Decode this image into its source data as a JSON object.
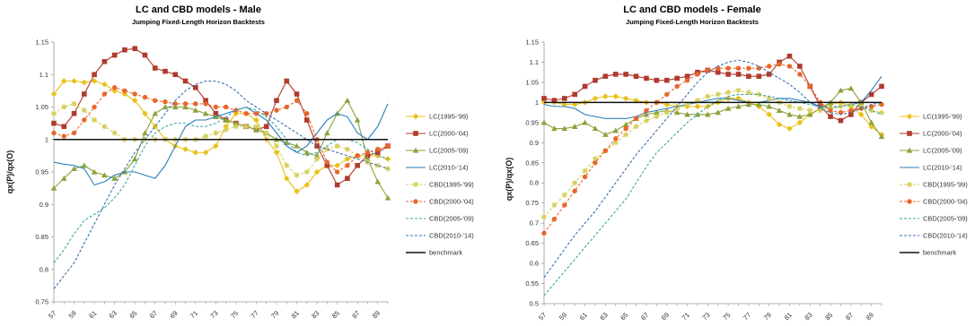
{
  "chart_data": [
    {
      "type": "line",
      "title": "LC and CBD models - Male",
      "subtitle": "Jumping Fixed-Length Horizon Backtests",
      "ylabel": "qx(P)/qx(O)",
      "xlabel": "",
      "ylim": [
        0.75,
        1.15
      ],
      "yticks": [
        0.75,
        0.8,
        0.85,
        0.9,
        0.95,
        1,
        1.05,
        1.1,
        1.15
      ],
      "ytick_labels": [
        "0.75",
        "0.8",
        "0.85",
        "0.9",
        "0.95",
        "1",
        "1.05",
        "1.1",
        "1.15"
      ],
      "x": [
        57,
        58,
        59,
        60,
        61,
        62,
        63,
        64,
        65,
        66,
        67,
        68,
        69,
        70,
        71,
        72,
        73,
        74,
        75,
        76,
        77,
        78,
        79,
        80,
        81,
        82,
        83,
        84,
        85,
        86,
        87,
        88,
        89,
        90
      ],
      "xtick_labels": [
        "57",
        "59",
        "61",
        "63",
        "65",
        "67",
        "69",
        "71",
        "73",
        "75",
        "77",
        "79",
        "81",
        "83",
        "85",
        "87",
        "89"
      ],
      "grid": false,
      "legend_position": "right",
      "series": [
        {
          "name": "LC(1995-'99)",
          "color": "#e8c21a",
          "dash": "solid",
          "marker": "diamond",
          "values": [
            1.07,
            1.09,
            1.09,
            1.088,
            1.09,
            1.085,
            1.075,
            1.07,
            1.06,
            1.04,
            1.02,
            1.0,
            0.99,
            0.985,
            0.98,
            0.98,
            0.99,
            1.02,
            1.04,
            1.04,
            1.03,
            1.0,
            0.98,
            0.94,
            0.92,
            0.93,
            0.95,
            0.96,
            0.96,
            0.97,
            0.975,
            0.975,
            0.975,
            0.97
          ]
        },
        {
          "name": "LC(2000-'04)",
          "color": "#b03a2e",
          "dash": "solid",
          "marker": "square",
          "values": [
            1.025,
            1.02,
            1.04,
            1.07,
            1.1,
            1.12,
            1.13,
            1.138,
            1.14,
            1.13,
            1.11,
            1.105,
            1.1,
            1.09,
            1.08,
            1.06,
            1.04,
            1.03,
            1.025,
            1.02,
            1.015,
            1.02,
            1.06,
            1.09,
            1.07,
            1.03,
            0.99,
            0.96,
            0.93,
            0.94,
            0.96,
            0.975,
            0.98,
            0.99
          ]
        },
        {
          "name": "LC(2005-'09)",
          "color": "#8aa33a",
          "dash": "solid",
          "marker": "triangle",
          "values": [
            0.925,
            0.94,
            0.955,
            0.96,
            0.95,
            0.945,
            0.94,
            0.95,
            0.97,
            1.01,
            1.04,
            1.05,
            1.05,
            1.05,
            1.045,
            1.04,
            1.035,
            1.03,
            1.025,
            1.02,
            1.015,
            1.01,
            1.0,
            0.995,
            0.99,
            0.98,
            0.975,
            1.01,
            1.04,
            1.06,
            1.03,
            0.97,
            0.935,
            0.91
          ]
        },
        {
          "name": "LC(2010-'14)",
          "color": "#2a7fb8",
          "dash": "solid",
          "marker": "none",
          "values": [
            0.965,
            0.962,
            0.96,
            0.955,
            0.93,
            0.935,
            0.945,
            0.95,
            0.95,
            0.945,
            0.94,
            0.96,
            0.99,
            1.02,
            1.03,
            1.03,
            1.035,
            1.04,
            1.045,
            1.05,
            1.04,
            1.03,
            1.01,
            0.99,
            0.98,
            0.99,
            1.01,
            1.03,
            1.04,
            1.035,
            1.01,
            1.0,
            1.02,
            1.055
          ]
        },
        {
          "name": "CBD(1995-'99)",
          "color": "#d6cf5a",
          "dash": "dashed",
          "marker": "star",
          "values": [
            1.04,
            1.05,
            1.055,
            1.045,
            1.03,
            1.02,
            1.01,
            1.0,
            1.0,
            1.0,
            1.0,
            1.0,
            1.0,
            1.0,
            1.0,
            1.005,
            1.01,
            1.015,
            1.02,
            1.02,
            1.02,
            1.01,
            0.99,
            0.96,
            0.945,
            0.95,
            0.97,
            0.985,
            0.99,
            0.985,
            0.975,
            0.965,
            0.96,
            0.955
          ]
        },
        {
          "name": "CBD(2000-'04)",
          "color": "#e8662a",
          "dash": "dashed",
          "marker": "circle",
          "values": [
            1.01,
            1.005,
            1.01,
            1.03,
            1.05,
            1.07,
            1.08,
            1.075,
            1.07,
            1.065,
            1.06,
            1.058,
            1.055,
            1.055,
            1.055,
            1.055,
            1.05,
            1.05,
            1.045,
            1.04,
            1.04,
            1.04,
            1.045,
            1.05,
            1.06,
            1.04,
            1.0,
            0.965,
            0.95,
            0.96,
            0.975,
            0.98,
            0.985,
            0.99
          ]
        },
        {
          "name": "CBD(2005-'09)",
          "color": "#3aa6a0",
          "dash": "dashed",
          "marker": "none",
          "values": [
            0.81,
            0.83,
            0.855,
            0.875,
            0.885,
            0.895,
            0.91,
            0.93,
            0.96,
            0.99,
            1.01,
            1.02,
            1.025,
            1.025,
            1.02,
            1.02,
            1.025,
            1.035,
            1.045,
            1.05,
            1.045,
            1.035,
            1.02,
            1.0,
            0.98,
            0.975,
            0.98,
            0.99,
            1.0,
            1.0,
            0.995,
            0.985,
            0.975,
            0.97
          ]
        },
        {
          "name": "CBD(2010-'14)",
          "color": "#3a6fb0",
          "dash": "dashed",
          "marker": "none",
          "values": [
            0.77,
            0.79,
            0.81,
            0.84,
            0.87,
            0.9,
            0.93,
            0.955,
            0.98,
            1.0,
            1.02,
            1.04,
            1.06,
            1.075,
            1.085,
            1.09,
            1.09,
            1.085,
            1.075,
            1.06,
            1.05,
            1.04,
            1.03,
            1.02,
            1.01,
            1.0,
            0.99,
            0.985,
            0.98,
            0.975,
            0.97,
            0.965,
            0.96,
            0.955
          ]
        },
        {
          "name": "benchmark",
          "color": "#111111",
          "dash": "solid",
          "marker": "none",
          "width": 1.4,
          "values": [
            1,
            1,
            1,
            1,
            1,
            1,
            1,
            1,
            1,
            1,
            1,
            1,
            1,
            1,
            1,
            1,
            1,
            1,
            1,
            1,
            1,
            1,
            1,
            1,
            1,
            1,
            1,
            1,
            1,
            1,
            1,
            1,
            1,
            1
          ]
        }
      ]
    },
    {
      "type": "line",
      "title": "LC and CBD models - Female",
      "subtitle": "Jumping Fixed-Length Horizon Backtests",
      "ylabel": "qx(P)/qx(O)",
      "xlabel": "",
      "ylim": [
        0.5,
        1.15
      ],
      "yticks": [
        0.5,
        0.55,
        0.6,
        0.65,
        0.7,
        0.75,
        0.8,
        0.85,
        0.9,
        0.95,
        1,
        1.05,
        1.1,
        1.15
      ],
      "ytick_labels": [
        "0.5",
        "0.55",
        "0.6",
        "0.65",
        "0.7",
        "0.75",
        "0.8",
        "0.85",
        "0.9",
        "0.95",
        "1",
        "1.05",
        "1.1",
        "1.15"
      ],
      "x": [
        57,
        58,
        59,
        60,
        61,
        62,
        63,
        64,
        65,
        66,
        67,
        68,
        69,
        70,
        71,
        72,
        73,
        74,
        75,
        76,
        77,
        78,
        79,
        80,
        81,
        82,
        83,
        84,
        85,
        86,
        87,
        88,
        89,
        90
      ],
      "xtick_labels": [
        "57",
        "59",
        "61",
        "63",
        "65",
        "67",
        "69",
        "71",
        "73",
        "75",
        "77",
        "79",
        "81",
        "83",
        "85",
        "87",
        "89"
      ],
      "grid": false,
      "legend_position": "right",
      "series": [
        {
          "name": "LC(1995-'99)",
          "color": "#e8c21a",
          "dash": "solid",
          "marker": "diamond",
          "values": [
            1.0,
            1.0,
            0.995,
            0.995,
            1.0,
            1.01,
            1.015,
            1.015,
            1.01,
            1.005,
            1.0,
            1.0,
            0.995,
            0.99,
            0.99,
            0.99,
            0.99,
            1.0,
            1.01,
            1.01,
            1.0,
            0.99,
            0.97,
            0.945,
            0.935,
            0.95,
            0.97,
            0.985,
            0.995,
            1.0,
            0.99,
            0.97,
            0.94,
            0.92
          ]
        },
        {
          "name": "LC(2000-'04)",
          "color": "#b03a2e",
          "dash": "solid",
          "marker": "square",
          "values": [
            1.01,
            1.005,
            1.01,
            1.02,
            1.04,
            1.055,
            1.065,
            1.07,
            1.07,
            1.065,
            1.06,
            1.055,
            1.055,
            1.06,
            1.065,
            1.075,
            1.08,
            1.075,
            1.07,
            1.07,
            1.065,
            1.065,
            1.07,
            1.1,
            1.115,
            1.09,
            1.04,
            0.99,
            0.965,
            0.955,
            0.97,
            1.0,
            1.02,
            1.04
          ]
        },
        {
          "name": "LC(2005-'09)",
          "color": "#8aa33a",
          "dash": "solid",
          "marker": "triangle",
          "values": [
            0.95,
            0.935,
            0.935,
            0.94,
            0.95,
            0.935,
            0.92,
            0.93,
            0.945,
            0.96,
            0.97,
            0.975,
            0.98,
            0.975,
            0.97,
            0.97,
            0.97,
            0.975,
            0.985,
            0.99,
            0.995,
            0.995,
            0.99,
            0.98,
            0.97,
            0.965,
            0.97,
            0.985,
            1.0,
            1.03,
            1.035,
            1.0,
            0.95,
            0.915
          ]
        },
        {
          "name": "LC(2010-'14)",
          "color": "#2a7fb8",
          "dash": "solid",
          "marker": "none",
          "values": [
            0.995,
            0.99,
            0.99,
            0.985,
            0.97,
            0.965,
            0.96,
            0.96,
            0.96,
            0.965,
            0.975,
            0.98,
            0.985,
            0.99,
            0.995,
            1.0,
            1.005,
            1.01,
            1.01,
            1.005,
            1.0,
            1.0,
            1.005,
            1.01,
            1.01,
            1.005,
            1.0,
            0.99,
            0.985,
            0.99,
            0.995,
            1.0,
            1.03,
            1.065
          ]
        },
        {
          "name": "CBD(1995-'99)",
          "color": "#d6cf5a",
          "dash": "dashed",
          "marker": "star",
          "values": [
            0.715,
            0.745,
            0.77,
            0.8,
            0.83,
            0.86,
            0.88,
            0.9,
            0.92,
            0.94,
            0.955,
            0.965,
            0.975,
            0.985,
            0.995,
            1.005,
            1.015,
            1.02,
            1.025,
            1.03,
            1.025,
            1.02,
            1.01,
            1.0,
            0.99,
            0.985,
            0.98,
            0.98,
            0.985,
            0.99,
            0.995,
            0.99,
            0.98,
            0.975
          ]
        },
        {
          "name": "CBD(2000-'04)",
          "color": "#e8662a",
          "dash": "dashed",
          "marker": "circle",
          "values": [
            0.675,
            0.71,
            0.745,
            0.78,
            0.815,
            0.85,
            0.88,
            0.91,
            0.935,
            0.96,
            0.98,
            1.0,
            1.02,
            1.04,
            1.055,
            1.07,
            1.08,
            1.085,
            1.085,
            1.085,
            1.085,
            1.085,
            1.09,
            1.095,
            1.09,
            1.07,
            1.04,
            1.0,
            0.98,
            0.975,
            0.98,
            0.985,
            0.99,
            0.995
          ]
        },
        {
          "name": "CBD(2005-'09)",
          "color": "#3aa6a0",
          "dash": "dashed",
          "marker": "none",
          "values": [
            0.52,
            0.55,
            0.58,
            0.61,
            0.64,
            0.67,
            0.7,
            0.73,
            0.76,
            0.8,
            0.84,
            0.875,
            0.9,
            0.925,
            0.95,
            0.97,
            0.99,
            1.005,
            1.015,
            1.02,
            1.02,
            1.02,
            1.015,
            1.01,
            1.005,
            1.0,
            0.995,
            0.99,
            0.99,
            0.99,
            0.995,
            0.99,
            0.98,
            0.97
          ]
        },
        {
          "name": "CBD(2010-'14)",
          "color": "#3a6fb0",
          "dash": "dashed",
          "marker": "none",
          "values": [
            0.565,
            0.6,
            0.635,
            0.67,
            0.7,
            0.73,
            0.765,
            0.8,
            0.835,
            0.87,
            0.9,
            0.93,
            0.96,
            0.99,
            1.02,
            1.05,
            1.075,
            1.09,
            1.1,
            1.105,
            1.1,
            1.09,
            1.075,
            1.06,
            1.045,
            1.025,
            1.0,
            0.985,
            0.975,
            0.97,
            0.975,
            0.985,
            0.995,
            1.0
          ]
        },
        {
          "name": "benchmark",
          "color": "#111111",
          "dash": "solid",
          "marker": "none",
          "width": 1.4,
          "values": [
            1,
            1,
            1,
            1,
            1,
            1,
            1,
            1,
            1,
            1,
            1,
            1,
            1,
            1,
            1,
            1,
            1,
            1,
            1,
            1,
            1,
            1,
            1,
            1,
            1,
            1,
            1,
            1,
            1,
            1,
            1,
            1,
            1,
            1
          ]
        }
      ]
    }
  ]
}
